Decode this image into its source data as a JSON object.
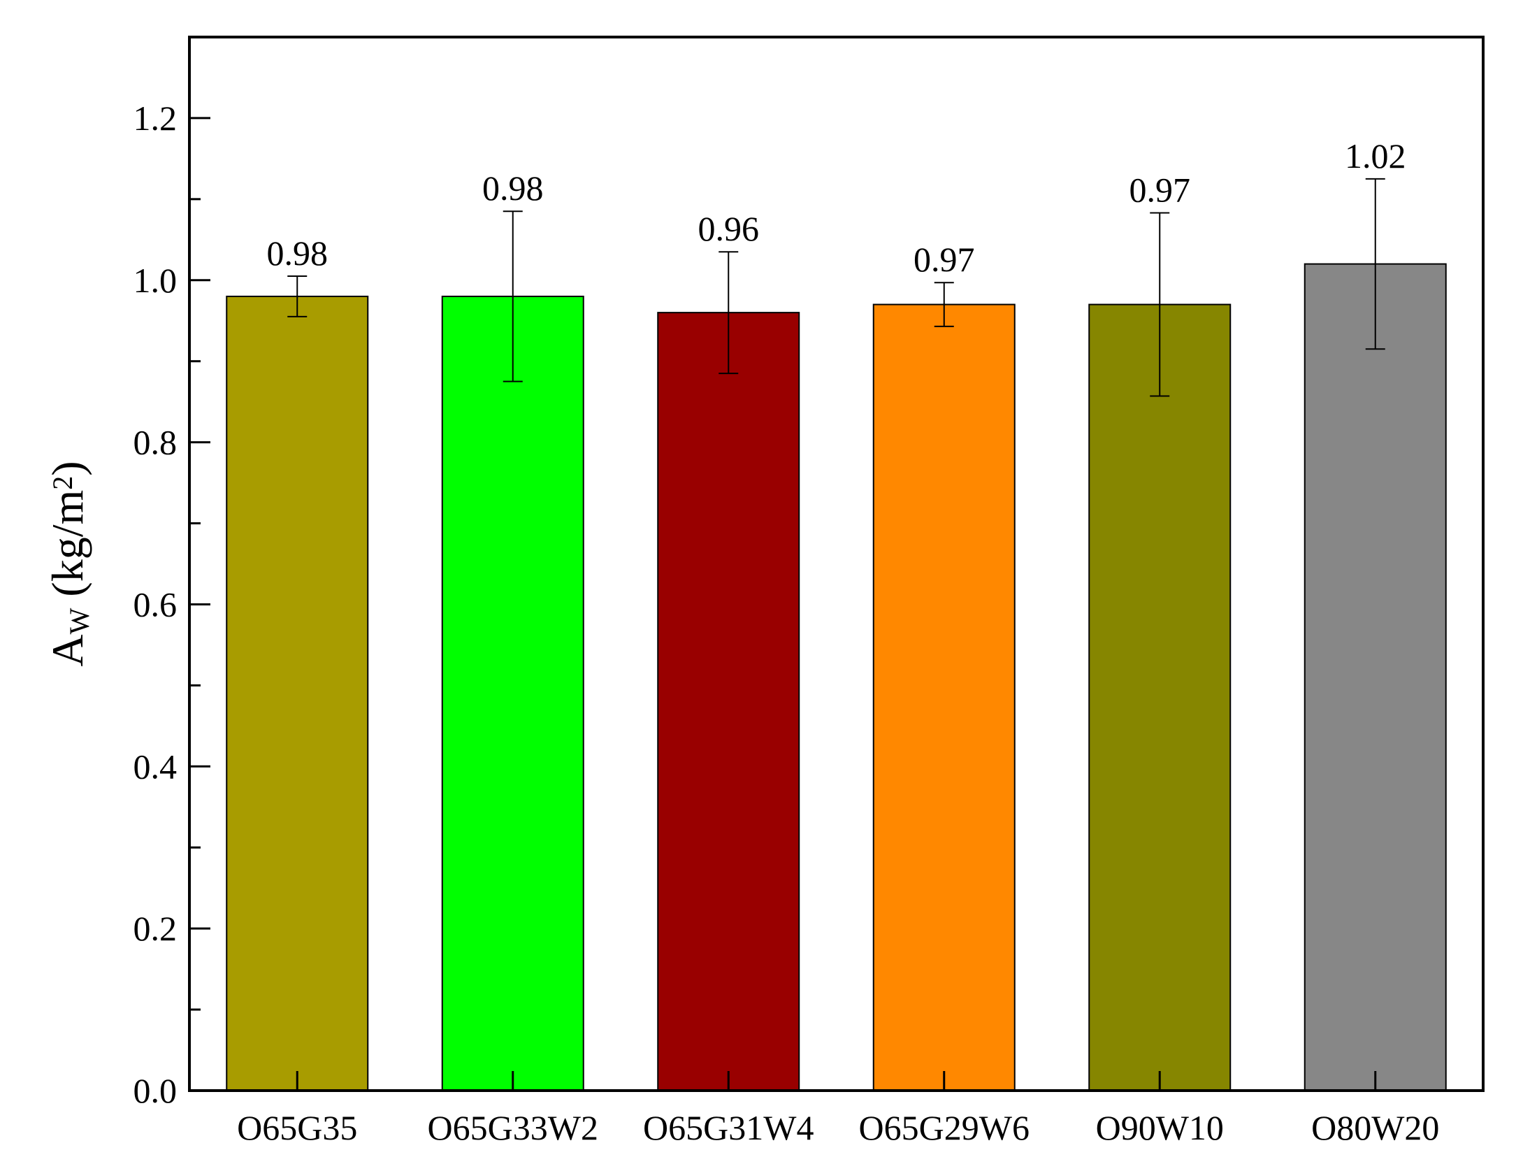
{
  "chart_data": {
    "type": "bar",
    "title": "",
    "xlabel": "",
    "ylabel": {
      "base": "A",
      "subscript": "W",
      "unit_open": " (kg/m",
      "unit_sup": "2",
      "unit_close": ")"
    },
    "ylim": [
      0,
      1.3
    ],
    "yticks": [
      0.0,
      0.2,
      0.4,
      0.6,
      0.8,
      1.0,
      1.2
    ],
    "ytick_labels": [
      "0.0",
      "0.2",
      "0.4",
      "0.6",
      "0.8",
      "1.0",
      "1.2"
    ],
    "categories": [
      "O65G35",
      "O65G33W2",
      "O65G31W4",
      "O65G29W6",
      "O90W10",
      "O80W20"
    ],
    "values": [
      0.98,
      0.98,
      0.96,
      0.97,
      0.97,
      1.02
    ],
    "value_labels": [
      "0.98",
      "0.98",
      "0.96",
      "0.97",
      "0.97",
      "1.02"
    ],
    "errors": [
      0.025,
      0.105,
      0.075,
      0.027,
      0.113,
      0.105
    ],
    "colors": [
      "#A89C00",
      "#00FF00",
      "#990000",
      "#FF8800",
      "#868600",
      "#878787"
    ],
    "grid": false,
    "legend": "none"
  }
}
